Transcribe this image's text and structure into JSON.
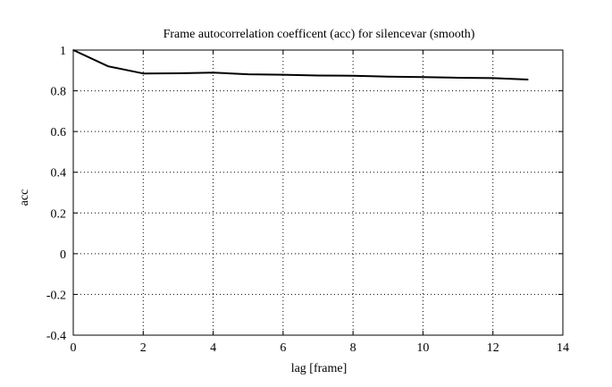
{
  "chart_data": {
    "type": "line",
    "title": "Frame autocorrelation coefficent (acc) for silencevar (smooth)",
    "xlabel": "lag [frame]",
    "ylabel": "acc",
    "xlim": [
      0,
      14
    ],
    "ylim": [
      -0.4,
      1
    ],
    "xticks": [
      0,
      2,
      4,
      6,
      8,
      10,
      12,
      14
    ],
    "xtick_labels": [
      "0",
      "2",
      "4",
      "6",
      "8",
      "10",
      "12",
      "14"
    ],
    "yticks": [
      1,
      0.8,
      0.6,
      0.4,
      0.2,
      0,
      -0.2,
      -0.4
    ],
    "ytick_labels": [
      "1",
      "0.8",
      "0.6",
      "0.4",
      "0.2",
      "0",
      "-0.2",
      "-0.4"
    ],
    "grid": true,
    "grid_style": "dotted",
    "legend": "none",
    "series": [
      {
        "color": "#000000",
        "x": [
          0,
          1,
          2,
          3,
          4,
          5,
          6,
          7,
          8,
          9,
          10,
          11,
          12,
          13
        ],
        "y": [
          1.0,
          0.92,
          0.885,
          0.886,
          0.889,
          0.881,
          0.879,
          0.875,
          0.874,
          0.869,
          0.867,
          0.864,
          0.862,
          0.855
        ]
      }
    ]
  }
}
